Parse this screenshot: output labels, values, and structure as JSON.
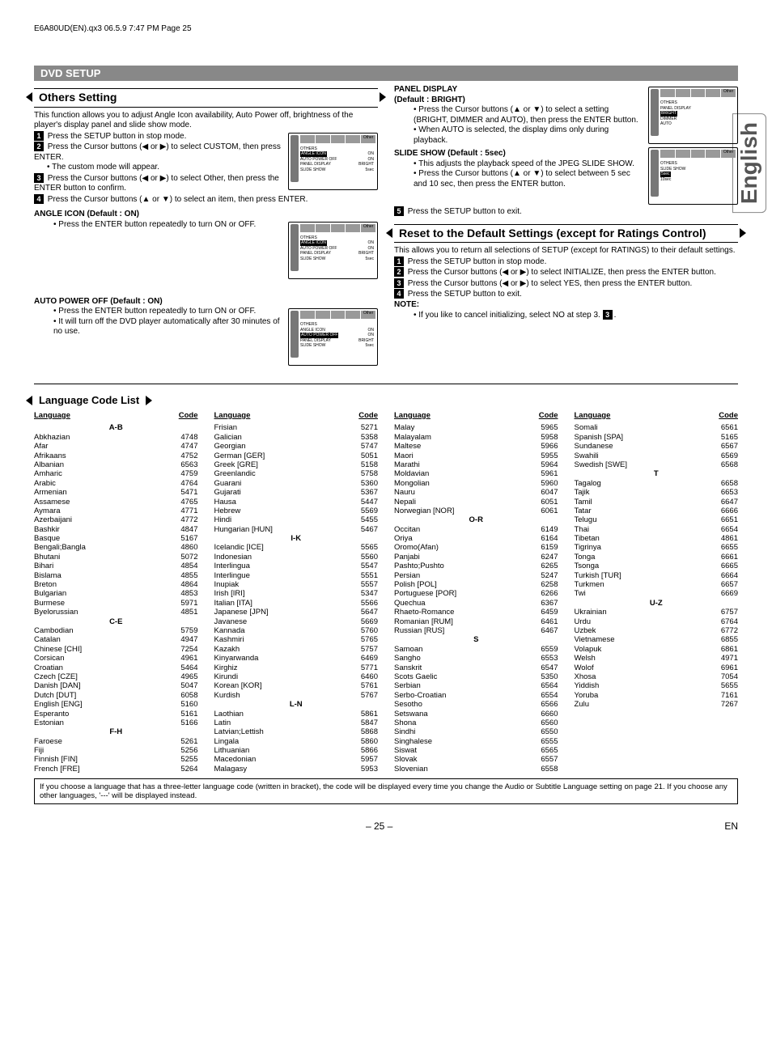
{
  "header": {
    "file_info": "E6A80UD(EN).qx3  06.5.9  7:47 PM  Page 25"
  },
  "tab": {
    "label": "English"
  },
  "section_bar": "DVD SETUP",
  "left": {
    "others_setting": {
      "title": "Others Setting",
      "intro": "This function allows you to adjust Angle Icon availability, Auto Power off, brightness of the player's display panel and slide show mode.",
      "step1": "Press the SETUP button in stop mode.",
      "step2": "Press the Cursor buttons (◀ or ▶) to select CUSTOM, then press ENTER.",
      "step2_sub": "• The custom mode will appear.",
      "step3": "Press the Cursor buttons (◀ or ▶) to select Other, then press the ENTER button to confirm.",
      "step4": "Press the Cursor buttons (▲ or ▼) to select an item, then press ENTER."
    },
    "angle_icon": {
      "title": "ANGLE ICON (Default : ON)",
      "text": "• Press the ENTER button repeatedly to turn ON or OFF."
    },
    "auto_power": {
      "title": "AUTO POWER OFF (Default : ON)",
      "text1": "• Press the ENTER button repeatedly to turn  ON or OFF.",
      "text2": "• It will turn off the DVD player automatically after 30 minutes of no use."
    },
    "mini_rows": [
      {
        "k": "OTHERS",
        "v": ""
      },
      {
        "k": "ANGLE ICON",
        "v": "ON"
      },
      {
        "k": "AUTO POWER OFF",
        "v": "ON"
      },
      {
        "k": "PANEL DISPLAY",
        "v": "BRIGHT"
      },
      {
        "k": "SLIDE SHOW",
        "v": "5sec"
      }
    ]
  },
  "right": {
    "panel_display": {
      "title": "PANEL DISPLAY",
      "subtitle": "(Default : BRIGHT)",
      "b1": "• Press the Cursor buttons (▲ or ▼) to select a setting (BRIGHT, DIMMER and AUTO), then press the ENTER button.",
      "b2": "• When AUTO is selected, the display dims only during playback."
    },
    "slide_show": {
      "title": "SLIDE SHOW (Default : 5sec)",
      "b1": "• This adjusts the playback speed of the JPEG SLIDE SHOW.",
      "b2": "• Press the Cursor buttons (▲ or ▼) to select between 5 sec and 10 sec, then press the ENTER button."
    },
    "step5": "Press the SETUP button to exit.",
    "reset": {
      "title": "Reset to the Default Settings (except for Ratings Control)",
      "intro": "This allows you to return all selections of SETUP (except for RATINGS) to their default settings.",
      "s1": "Press the SETUP button in stop mode.",
      "s2": "Press the Cursor buttons (◀ or ▶) to select INITIALIZE, then press the ENTER button.",
      "s3": "Press the Cursor buttons (◀ or ▶) to select YES, then press the ENTER button.",
      "s4": "Press the SETUP button to exit.",
      "note_label": "NOTE:",
      "note": "• If you like to cancel initializing, select NO at step 3."
    },
    "mini1_rows": [
      {
        "k": "OTHERS",
        "v": ""
      },
      {
        "k": "PANEL DISPLAY",
        "v": ""
      },
      {
        "k": "BRIGHT",
        "v": ""
      },
      {
        "k": "DIMMER",
        "v": ""
      },
      {
        "k": "AUTO",
        "v": ""
      }
    ],
    "mini2_rows": [
      {
        "k": "OTHERS",
        "v": ""
      },
      {
        "k": "SLIDE SHOW",
        "v": ""
      },
      {
        "k": "5sec",
        "v": ""
      },
      {
        "k": "10sec",
        "v": ""
      }
    ]
  },
  "lang_list": {
    "title": "Language Code List",
    "col_head": {
      "l": "Language",
      "c": "Code"
    },
    "note": "If you choose a language that has a three-letter language code (written in bracket), the code will be displayed every time you change the Audio or Subtitle Language setting on page 21. If you choose any other languages, '---' will be displayed instead.",
    "columns": [
      [
        {
          "sub": "A-B"
        },
        {
          "l": "Abkhazian",
          "c": "4748"
        },
        {
          "l": "Afar",
          "c": "4747"
        },
        {
          "l": "Afrikaans",
          "c": "4752"
        },
        {
          "l": "Albanian",
          "c": "6563"
        },
        {
          "l": "Amharic",
          "c": "4759"
        },
        {
          "l": "Arabic",
          "c": "4764"
        },
        {
          "l": "Armenian",
          "c": "5471"
        },
        {
          "l": "Assamese",
          "c": "4765"
        },
        {
          "l": "Aymara",
          "c": "4771"
        },
        {
          "l": "Azerbaijani",
          "c": "4772"
        },
        {
          "l": "Bashkir",
          "c": "4847"
        },
        {
          "l": "Basque",
          "c": "5167"
        },
        {
          "l": "Bengali;Bangla",
          "c": "4860"
        },
        {
          "l": "Bhutani",
          "c": "5072"
        },
        {
          "l": "Bihari",
          "c": "4854"
        },
        {
          "l": "Bislama",
          "c": "4855"
        },
        {
          "l": "Breton",
          "c": "4864"
        },
        {
          "l": "Bulgarian",
          "c": "4853"
        },
        {
          "l": "Burmese",
          "c": "5971"
        },
        {
          "l": "Byelorussian",
          "c": "4851"
        },
        {
          "sub": "C-E"
        },
        {
          "l": "Cambodian",
          "c": "5759"
        },
        {
          "l": "Catalan",
          "c": "4947"
        },
        {
          "l": "Chinese [CHI]",
          "c": "7254"
        },
        {
          "l": "Corsican",
          "c": "4961"
        },
        {
          "l": "Croatian",
          "c": "5464"
        },
        {
          "l": "Czech [CZE]",
          "c": "4965"
        },
        {
          "l": "Danish [DAN]",
          "c": "5047"
        },
        {
          "l": "Dutch [DUT]",
          "c": "6058"
        },
        {
          "l": "English [ENG]",
          "c": "5160"
        },
        {
          "l": "Esperanto",
          "c": "5161"
        },
        {
          "l": "Estonian",
          "c": "5166"
        },
        {
          "sub": "F-H"
        },
        {
          "l": "Faroese",
          "c": "5261"
        },
        {
          "l": "Fiji",
          "c": "5256"
        },
        {
          "l": "Finnish [FIN]",
          "c": "5255"
        },
        {
          "l": "French [FRE]",
          "c": "5264"
        }
      ],
      [
        {
          "l": "Frisian",
          "c": "5271"
        },
        {
          "l": "Galician",
          "c": "5358"
        },
        {
          "l": "Georgian",
          "c": "5747"
        },
        {
          "l": "German [GER]",
          "c": "5051"
        },
        {
          "l": "Greek [GRE]",
          "c": "5158"
        },
        {
          "l": "Greenlandic",
          "c": "5758"
        },
        {
          "l": "Guarani",
          "c": "5360"
        },
        {
          "l": "Gujarati",
          "c": "5367"
        },
        {
          "l": "Hausa",
          "c": "5447"
        },
        {
          "l": "Hebrew",
          "c": "5569"
        },
        {
          "l": "Hindi",
          "c": "5455"
        },
        {
          "l": "Hungarian [HUN]",
          "c": "5467"
        },
        {
          "sub": "I-K"
        },
        {
          "l": "Icelandic [ICE]",
          "c": "5565"
        },
        {
          "l": "Indonesian",
          "c": "5560"
        },
        {
          "l": "Interlingua",
          "c": "5547"
        },
        {
          "l": "Interlingue",
          "c": "5551"
        },
        {
          "l": "Inupiak",
          "c": "5557"
        },
        {
          "l": "Irish [IRI]",
          "c": "5347"
        },
        {
          "l": "Italian [ITA]",
          "c": "5566"
        },
        {
          "l": "Japanese [JPN]",
          "c": "5647"
        },
        {
          "l": "Javanese",
          "c": "5669"
        },
        {
          "l": "Kannada",
          "c": "5760"
        },
        {
          "l": "Kashmiri",
          "c": "5765"
        },
        {
          "l": "Kazakh",
          "c": "5757"
        },
        {
          "l": "Kinyarwanda",
          "c": "6469"
        },
        {
          "l": "Kirghiz",
          "c": "5771"
        },
        {
          "l": "Kirundi",
          "c": "6460"
        },
        {
          "l": "Korean [KOR]",
          "c": "5761"
        },
        {
          "l": "Kurdish",
          "c": "5767"
        },
        {
          "sub": "L-N"
        },
        {
          "l": "Laothian",
          "c": "5861"
        },
        {
          "l": "Latin",
          "c": "5847"
        },
        {
          "l": "Latvian;Lettish",
          "c": "5868"
        },
        {
          "l": "Lingala",
          "c": "5860"
        },
        {
          "l": "Lithuanian",
          "c": "5866"
        },
        {
          "l": "Macedonian",
          "c": "5957"
        },
        {
          "l": "Malagasy",
          "c": "5953"
        }
      ],
      [
        {
          "l": "Malay",
          "c": "5965"
        },
        {
          "l": "Malayalam",
          "c": "5958"
        },
        {
          "l": "Maltese",
          "c": "5966"
        },
        {
          "l": "Maori",
          "c": "5955"
        },
        {
          "l": "Marathi",
          "c": "5964"
        },
        {
          "l": "Moldavian",
          "c": "5961"
        },
        {
          "l": "Mongolian",
          "c": "5960"
        },
        {
          "l": "Nauru",
          "c": "6047"
        },
        {
          "l": "Nepali",
          "c": "6051"
        },
        {
          "l": "Norwegian [NOR]",
          "c": "6061"
        },
        {
          "sub": "O-R"
        },
        {
          "l": "Occitan",
          "c": "6149"
        },
        {
          "l": "Oriya",
          "c": "6164"
        },
        {
          "l": "Oromo(Afan)",
          "c": "6159"
        },
        {
          "l": "Panjabi",
          "c": "6247"
        },
        {
          "l": "Pashto;Pushto",
          "c": "6265"
        },
        {
          "l": "Persian",
          "c": "5247"
        },
        {
          "l": "Polish [POL]",
          "c": "6258"
        },
        {
          "l": "Portuguese [POR]",
          "c": "6266"
        },
        {
          "l": "Quechua",
          "c": "6367"
        },
        {
          "l": "Rhaeto-Romance",
          "c": "6459"
        },
        {
          "l": "Romanian [RUM]",
          "c": "6461"
        },
        {
          "l": "Russian [RUS]",
          "c": "6467"
        },
        {
          "sub": "S"
        },
        {
          "l": "Samoan",
          "c": "6559"
        },
        {
          "l": "Sangho",
          "c": "6553"
        },
        {
          "l": "Sanskrit",
          "c": "6547"
        },
        {
          "l": "Scots Gaelic",
          "c": "5350"
        },
        {
          "l": "Serbian",
          "c": "6564"
        },
        {
          "l": "Serbo-Croatian",
          "c": "6554"
        },
        {
          "l": "Sesotho",
          "c": "6566"
        },
        {
          "l": "Setswana",
          "c": "6660"
        },
        {
          "l": "Shona",
          "c": "6560"
        },
        {
          "l": "Sindhi",
          "c": "6550"
        },
        {
          "l": "Singhalese",
          "c": "6555"
        },
        {
          "l": "Siswat",
          "c": "6565"
        },
        {
          "l": "Slovak",
          "c": "6557"
        },
        {
          "l": "Slovenian",
          "c": "6558"
        }
      ],
      [
        {
          "l": "Somali",
          "c": "6561"
        },
        {
          "l": "Spanish [SPA]",
          "c": "5165"
        },
        {
          "l": "Sundanese",
          "c": "6567"
        },
        {
          "l": "Swahili",
          "c": "6569"
        },
        {
          "l": "Swedish [SWE]",
          "c": "6568"
        },
        {
          "sub": "T"
        },
        {
          "l": "Tagalog",
          "c": "6658"
        },
        {
          "l": "Tajik",
          "c": "6653"
        },
        {
          "l": "Tamil",
          "c": "6647"
        },
        {
          "l": "Tatar",
          "c": "6666"
        },
        {
          "l": "Telugu",
          "c": "6651"
        },
        {
          "l": "Thai",
          "c": "6654"
        },
        {
          "l": "Tibetan",
          "c": "4861"
        },
        {
          "l": "Tigrinya",
          "c": "6655"
        },
        {
          "l": "Tonga",
          "c": "6661"
        },
        {
          "l": "Tsonga",
          "c": "6665"
        },
        {
          "l": "Turkish [TUR]",
          "c": "6664"
        },
        {
          "l": "Turkmen",
          "c": "6657"
        },
        {
          "l": "Twi",
          "c": "6669"
        },
        {
          "sub": "U-Z"
        },
        {
          "l": "Ukrainian",
          "c": "6757"
        },
        {
          "l": "Urdu",
          "c": "6764"
        },
        {
          "l": "Uzbek",
          "c": "6772"
        },
        {
          "l": "Vietnamese",
          "c": "6855"
        },
        {
          "l": "Volapuk",
          "c": "6861"
        },
        {
          "l": "Welsh",
          "c": "4971"
        },
        {
          "l": "Wolof",
          "c": "6961"
        },
        {
          "l": "Xhosa",
          "c": "7054"
        },
        {
          "l": "Yiddish",
          "c": "5655"
        },
        {
          "l": "Yoruba",
          "c": "7161"
        },
        {
          "l": "Zulu",
          "c": "7267"
        }
      ]
    ]
  },
  "footer": {
    "page": "– 25 –",
    "lang": "EN"
  }
}
